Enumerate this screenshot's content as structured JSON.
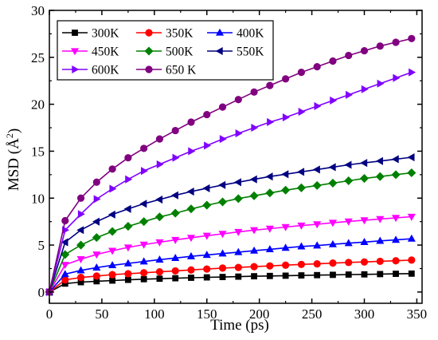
{
  "chart_data": {
    "type": "line",
    "xlabel": "Time (ps)",
    "ylabel_main": "MSD (Å",
    "ylabel_sup": "2",
    "ylabel_tail": ")",
    "xlim": [
      0,
      355
    ],
    "ylim": [
      -1.2,
      30
    ],
    "xticks": [
      0,
      50,
      100,
      150,
      200,
      250,
      300,
      350
    ],
    "yticks": [
      0,
      5,
      10,
      15,
      20,
      25,
      30
    ],
    "x": [
      0,
      15,
      30,
      45,
      60,
      75,
      90,
      105,
      120,
      135,
      150,
      165,
      180,
      195,
      210,
      225,
      240,
      255,
      270,
      285,
      300,
      315,
      330,
      345
    ],
    "legend_position": "top-left",
    "series": [
      {
        "name": "300K",
        "color": "#000000",
        "marker": "square",
        "values": [
          0,
          0.9,
          1.05,
          1.15,
          1.22,
          1.3,
          1.37,
          1.42,
          1.47,
          1.52,
          1.56,
          1.6,
          1.64,
          1.68,
          1.71,
          1.74,
          1.77,
          1.8,
          1.83,
          1.86,
          1.88,
          1.91,
          1.94,
          1.96
        ]
      },
      {
        "name": "350K",
        "color": "#ff0000",
        "marker": "circle",
        "values": [
          0,
          1.3,
          1.55,
          1.7,
          1.85,
          1.95,
          2.05,
          2.15,
          2.25,
          2.35,
          2.45,
          2.55,
          2.62,
          2.7,
          2.78,
          2.86,
          2.94,
          3.0,
          3.08,
          3.15,
          3.2,
          3.27,
          3.33,
          3.4
        ]
      },
      {
        "name": "400K",
        "color": "#0000ff",
        "marker": "triangle-up",
        "values": [
          0,
          1.9,
          2.3,
          2.6,
          2.85,
          3.05,
          3.25,
          3.45,
          3.62,
          3.8,
          3.95,
          4.1,
          4.25,
          4.4,
          4.55,
          4.7,
          4.85,
          4.95,
          5.08,
          5.2,
          5.32,
          5.45,
          5.55,
          5.68
        ]
      },
      {
        "name": "450K",
        "color": "#ff00ff",
        "marker": "triangle-down",
        "values": [
          0,
          2.9,
          3.5,
          4.0,
          4.4,
          4.75,
          5.05,
          5.3,
          5.55,
          5.78,
          6.0,
          6.2,
          6.4,
          6.6,
          6.75,
          6.92,
          7.08,
          7.22,
          7.38,
          7.52,
          7.65,
          7.78,
          7.9,
          8.02
        ]
      },
      {
        "name": "500K",
        "color": "#008000",
        "marker": "diamond",
        "values": [
          0,
          4.0,
          5.0,
          5.8,
          6.45,
          7.0,
          7.5,
          8.0,
          8.4,
          8.85,
          9.25,
          9.6,
          9.95,
          10.25,
          10.55,
          10.85,
          11.1,
          11.35,
          11.6,
          11.85,
          12.1,
          12.3,
          12.5,
          12.7
        ]
      },
      {
        "name": "550K",
        "color": "#000080",
        "marker": "triangle-left",
        "values": [
          0,
          5.3,
          6.6,
          7.5,
          8.25,
          8.85,
          9.4,
          9.85,
          10.3,
          10.7,
          11.05,
          11.4,
          11.7,
          12.0,
          12.3,
          12.55,
          12.8,
          13.05,
          13.3,
          13.55,
          13.75,
          13.95,
          14.15,
          14.35
        ]
      },
      {
        "name": "600K",
        "color": "#8000ff",
        "marker": "triangle-right",
        "values": [
          0,
          6.6,
          8.3,
          9.9,
          11.0,
          12.0,
          12.9,
          13.6,
          14.3,
          15.0,
          15.6,
          16.3,
          16.9,
          17.5,
          18.1,
          18.6,
          19.2,
          19.8,
          20.4,
          21.0,
          21.6,
          22.2,
          22.8,
          23.4
        ]
      },
      {
        "name": "650 K",
        "color": "#800080",
        "marker": "circle",
        "values": [
          0,
          7.6,
          10.0,
          11.7,
          13.1,
          14.3,
          15.3,
          16.3,
          17.2,
          18.1,
          18.9,
          19.7,
          20.5,
          21.3,
          22.0,
          22.7,
          23.4,
          24.0,
          24.6,
          25.2,
          25.7,
          26.2,
          26.6,
          27.0
        ]
      }
    ]
  }
}
